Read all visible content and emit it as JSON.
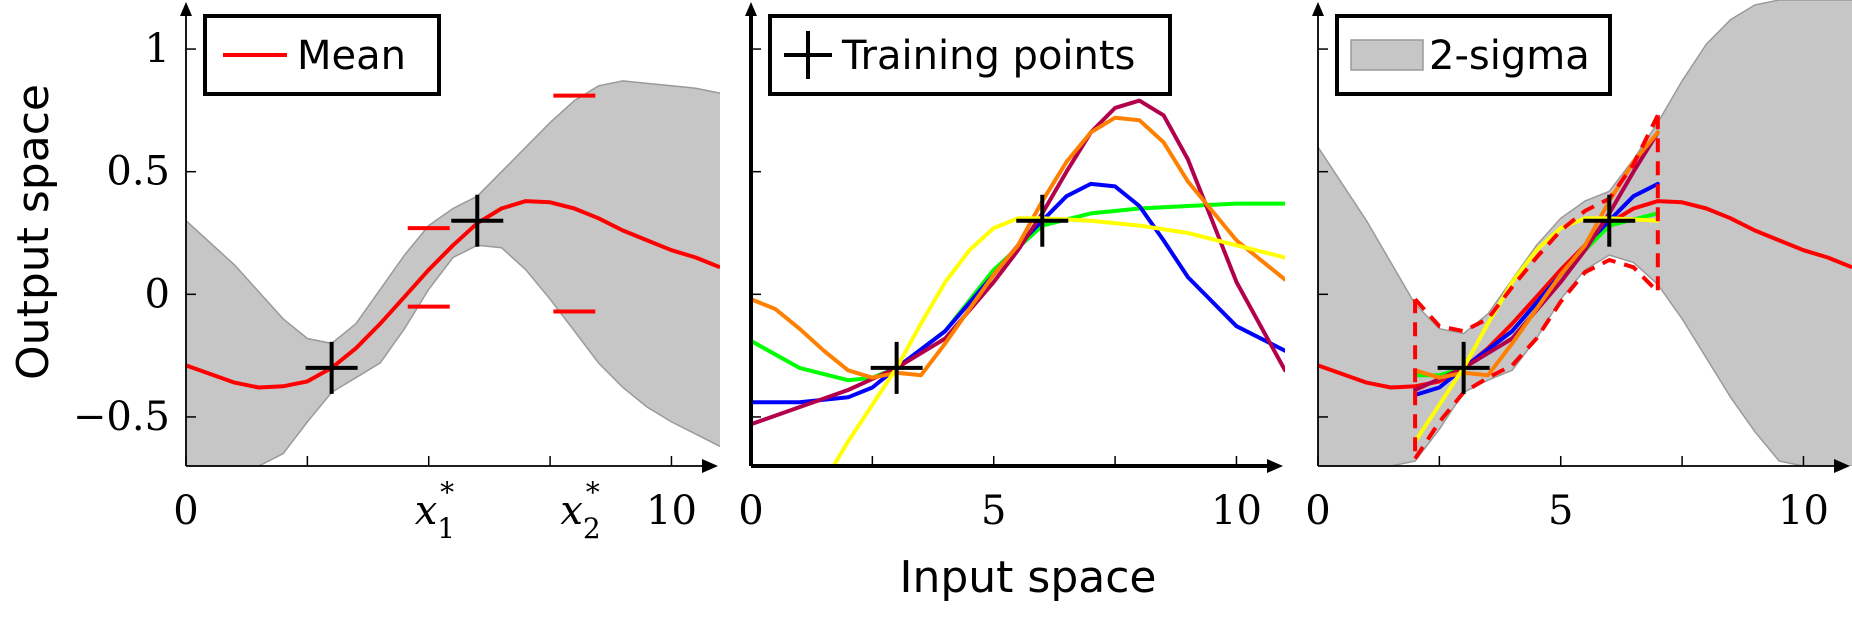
{
  "colors": {
    "mean": "#ff0000",
    "band": "#c6c6c6",
    "band_edge": "#9a9a9a",
    "marker": "#000000",
    "samples": [
      "#00ff00",
      "#0000ff",
      "#b3004d",
      "#ff8000",
      "#ffff00"
    ]
  },
  "ylabel": "Output space",
  "xlabel": "Input space",
  "chart_data": [
    {
      "type": "line",
      "panel": "left",
      "xlim": [
        0,
        11
      ],
      "ylim": [
        -0.7,
        1.2
      ],
      "x_ticks": [
        {
          "value": 0,
          "label": "0"
        },
        {
          "value": 10,
          "label": "10"
        }
      ],
      "x_special_ticks": [
        {
          "value": 5,
          "name": "x",
          "index": "1"
        },
        {
          "value": 8,
          "name": "x",
          "index": "2"
        }
      ],
      "y_ticks": [
        {
          "value": -0.5,
          "label": "−0.5"
        },
        {
          "value": 0,
          "label": "0"
        },
        {
          "value": 0.5,
          "label": "0.5"
        },
        {
          "value": 1,
          "label": "1"
        }
      ],
      "legend": {
        "position": "top-left",
        "entries": [
          {
            "label": "Mean",
            "kind": "line"
          }
        ]
      },
      "training_points": [
        {
          "x": 3,
          "y": -0.3
        },
        {
          "x": 6,
          "y": 0.3
        }
      ],
      "mean": {
        "x": [
          0,
          1,
          1.5,
          2,
          2.5,
          3,
          3.5,
          4,
          4.5,
          5,
          5.5,
          6,
          6.5,
          7,
          7.5,
          8,
          8.5,
          9,
          9.5,
          10,
          10.5,
          11
        ],
        "y": [
          -0.29,
          -0.36,
          -0.38,
          -0.375,
          -0.355,
          -0.3,
          -0.22,
          -0.12,
          -0.01,
          0.1,
          0.2,
          0.29,
          0.35,
          0.38,
          0.375,
          0.35,
          0.31,
          0.26,
          0.22,
          0.18,
          0.15,
          0.11
        ]
      },
      "band_upper": {
        "x": [
          0,
          1,
          2,
          2.5,
          3,
          3.5,
          4,
          4.5,
          5,
          5.5,
          6,
          6.5,
          7,
          7.5,
          8,
          8.5,
          9,
          9.5,
          10,
          10.5,
          11
        ],
        "y": [
          0.3,
          0.12,
          -0.1,
          -0.18,
          -0.2,
          -0.12,
          0.02,
          0.16,
          0.28,
          0.35,
          0.4,
          0.5,
          0.6,
          0.7,
          0.79,
          0.85,
          0.87,
          0.86,
          0.85,
          0.84,
          0.82
        ]
      },
      "band_lower": {
        "x": [
          0,
          1,
          1.5,
          2,
          2.5,
          3,
          3.5,
          4,
          4.5,
          5,
          5.5,
          6,
          6.5,
          7,
          7.5,
          8,
          8.5,
          9,
          9.5,
          10,
          10.5,
          11
        ],
        "y": [
          -0.7,
          -0.7,
          -0.7,
          -0.65,
          -0.52,
          -0.4,
          -0.34,
          -0.28,
          -0.14,
          0.02,
          0.15,
          0.2,
          0.19,
          0.1,
          -0.02,
          -0.15,
          -0.28,
          -0.38,
          -0.46,
          -0.52,
          -0.57,
          -0.62
        ]
      },
      "predictive_marks": [
        {
          "x": 5,
          "y": 0.27
        },
        {
          "x": 5,
          "y": -0.05
        },
        {
          "x": 8,
          "y": 0.81
        },
        {
          "x": 8,
          "y": -0.07
        }
      ]
    },
    {
      "type": "line",
      "panel": "middle",
      "xlim": [
        0,
        11
      ],
      "ylim": [
        -0.7,
        1.2
      ],
      "x_ticks": [
        {
          "value": 0,
          "label": "0"
        },
        {
          "value": 5,
          "label": "5"
        },
        {
          "value": 10,
          "label": "10"
        }
      ],
      "legend": {
        "position": "top-left",
        "entries": [
          {
            "label": "Training points",
            "kind": "marker"
          }
        ]
      },
      "training_points": [
        {
          "x": 3,
          "y": -0.3
        },
        {
          "x": 6,
          "y": 0.3
        }
      ],
      "samples": [
        {
          "color_index": 0,
          "x": [
            0,
            1,
            2,
            2.5,
            3,
            4,
            5,
            6,
            7,
            8,
            9,
            10,
            11
          ],
          "y": [
            -0.19,
            -0.3,
            -0.35,
            -0.34,
            -0.3,
            -0.15,
            0.1,
            0.28,
            0.33,
            0.35,
            0.36,
            0.37,
            0.37
          ]
        },
        {
          "color_index": 1,
          "x": [
            0,
            1,
            2,
            2.5,
            3,
            4,
            5,
            5.5,
            6,
            6.5,
            7,
            7.5,
            8,
            8.5,
            9,
            10,
            11
          ],
          "y": [
            -0.44,
            -0.44,
            -0.42,
            -0.38,
            -0.3,
            -0.15,
            0.08,
            0.2,
            0.3,
            0.4,
            0.45,
            0.44,
            0.36,
            0.22,
            0.07,
            -0.13,
            -0.23
          ]
        },
        {
          "color_index": 2,
          "x": [
            0,
            1,
            2,
            3,
            4,
            5,
            5.5,
            6,
            6.5,
            7,
            7.5,
            8,
            8.5,
            9,
            9.5,
            10,
            11
          ],
          "y": [
            -0.53,
            -0.46,
            -0.39,
            -0.3,
            -0.18,
            0.05,
            0.18,
            0.33,
            0.5,
            0.66,
            0.76,
            0.79,
            0.73,
            0.55,
            0.3,
            0.05,
            -0.31
          ]
        },
        {
          "color_index": 3,
          "x": [
            0,
            0.5,
            1,
            1.5,
            2,
            2.5,
            3,
            3.5,
            4,
            5,
            5.5,
            6,
            6.5,
            7,
            7.5,
            8,
            8.5,
            9,
            10,
            11
          ],
          "y": [
            -0.02,
            -0.06,
            -0.14,
            -0.23,
            -0.31,
            -0.34,
            -0.32,
            -0.33,
            -0.2,
            0.08,
            0.2,
            0.38,
            0.54,
            0.66,
            0.72,
            0.71,
            0.62,
            0.46,
            0.22,
            0.06
          ]
        },
        {
          "color_index": 4,
          "x": [
            1.7,
            2,
            2.5,
            3,
            3.5,
            4,
            4.5,
            5,
            5.5,
            6,
            7,
            8,
            9,
            10,
            11
          ],
          "y": [
            -0.7,
            -0.6,
            -0.45,
            -0.3,
            -0.12,
            0.05,
            0.18,
            0.27,
            0.31,
            0.31,
            0.3,
            0.28,
            0.25,
            0.2,
            0.15
          ]
        }
      ]
    },
    {
      "type": "line",
      "panel": "right",
      "xlim": [
        0,
        11
      ],
      "ylim": [
        -0.7,
        1.2
      ],
      "x_ticks": [
        {
          "value": 0,
          "label": "0"
        },
        {
          "value": 5,
          "label": "5"
        },
        {
          "value": 10,
          "label": "10"
        }
      ],
      "legend": {
        "position": "top-left",
        "entries": [
          {
            "label": "2-sigma",
            "kind": "area"
          }
        ]
      },
      "training_points": [
        {
          "x": 3,
          "y": -0.3
        },
        {
          "x": 6,
          "y": 0.3
        }
      ],
      "mean": {
        "x": [
          0,
          1,
          1.5,
          2,
          2.5,
          3,
          3.5,
          4,
          4.5,
          5,
          5.5,
          6,
          6.5,
          7,
          7.5,
          8,
          8.5,
          9,
          9.5,
          10,
          10.5,
          11
        ],
        "y": [
          -0.29,
          -0.36,
          -0.38,
          -0.375,
          -0.355,
          -0.3,
          -0.22,
          -0.12,
          -0.01,
          0.1,
          0.2,
          0.29,
          0.35,
          0.38,
          0.375,
          0.35,
          0.31,
          0.26,
          0.22,
          0.18,
          0.15,
          0.11
        ]
      },
      "band_upper": {
        "x": [
          0,
          1,
          2,
          2.5,
          3,
          3.5,
          4,
          4.5,
          5,
          5.5,
          6,
          6.5,
          7,
          7.5,
          8,
          8.5,
          9,
          9.5,
          10,
          10.5,
          11
        ],
        "y": [
          0.6,
          0.3,
          -0.04,
          -0.14,
          -0.16,
          -0.08,
          0.06,
          0.2,
          0.31,
          0.38,
          0.42,
          0.55,
          0.7,
          0.87,
          1.02,
          1.12,
          1.18,
          1.2,
          1.2,
          1.2,
          1.2
        ]
      },
      "band_lower": {
        "x": [
          0,
          1.5,
          2,
          2.5,
          3,
          3.5,
          4,
          4.5,
          5,
          5.5,
          6,
          6.5,
          7,
          7.5,
          8,
          8.5,
          9,
          9.5,
          10,
          10.5,
          11
        ],
        "y": [
          -0.7,
          -0.7,
          -0.68,
          -0.55,
          -0.4,
          -0.35,
          -0.31,
          -0.18,
          -0.02,
          0.1,
          0.16,
          0.13,
          0.04,
          -0.1,
          -0.26,
          -0.42,
          -0.56,
          -0.68,
          -0.7,
          -0.7,
          -0.7
        ]
      },
      "conditioned_band": {
        "x_start": 2,
        "x_end": 7,
        "upper": {
          "x": [
            2,
            2.5,
            3,
            3.5,
            4,
            4.5,
            5,
            5.5,
            6,
            6.5,
            7
          ],
          "y": [
            -0.02,
            -0.13,
            -0.15,
            -0.1,
            0.03,
            0.15,
            0.26,
            0.34,
            0.39,
            0.53,
            0.73
          ]
        },
        "lower": {
          "x": [
            2,
            2.5,
            3,
            3.5,
            4,
            4.5,
            5,
            5.5,
            6,
            6.5,
            7
          ],
          "y": [
            -0.67,
            -0.52,
            -0.4,
            -0.34,
            -0.29,
            -0.18,
            -0.03,
            0.09,
            0.14,
            0.11,
            0.01
          ]
        }
      },
      "samples": [
        {
          "color_index": 0,
          "x": [
            2,
            2.5,
            3,
            4,
            5,
            6,
            7
          ],
          "y": [
            -0.33,
            -0.33,
            -0.3,
            -0.15,
            0.08,
            0.28,
            0.33
          ]
        },
        {
          "color_index": 1,
          "x": [
            2,
            2.5,
            3,
            4,
            5,
            5.5,
            6,
            6.5,
            7
          ],
          "y": [
            -0.41,
            -0.38,
            -0.3,
            -0.15,
            0.08,
            0.2,
            0.3,
            0.4,
            0.45
          ]
        },
        {
          "color_index": 2,
          "x": [
            2,
            3,
            4,
            5,
            5.5,
            6,
            6.5,
            7
          ],
          "y": [
            -0.39,
            -0.3,
            -0.18,
            0.05,
            0.18,
            0.33,
            0.5,
            0.66
          ]
        },
        {
          "color_index": 3,
          "x": [
            2,
            2.5,
            3,
            3.5,
            4,
            5,
            5.5,
            6,
            6.5,
            7
          ],
          "y": [
            -0.31,
            -0.34,
            -0.32,
            -0.33,
            -0.2,
            0.08,
            0.2,
            0.38,
            0.54,
            0.66
          ]
        },
        {
          "color_index": 4,
          "x": [
            2,
            2.5,
            3,
            3.5,
            4,
            4.5,
            5,
            5.5,
            6,
            7
          ],
          "y": [
            -0.6,
            -0.45,
            -0.3,
            -0.12,
            0.05,
            0.18,
            0.27,
            0.31,
            0.31,
            0.3
          ]
        }
      ]
    }
  ]
}
